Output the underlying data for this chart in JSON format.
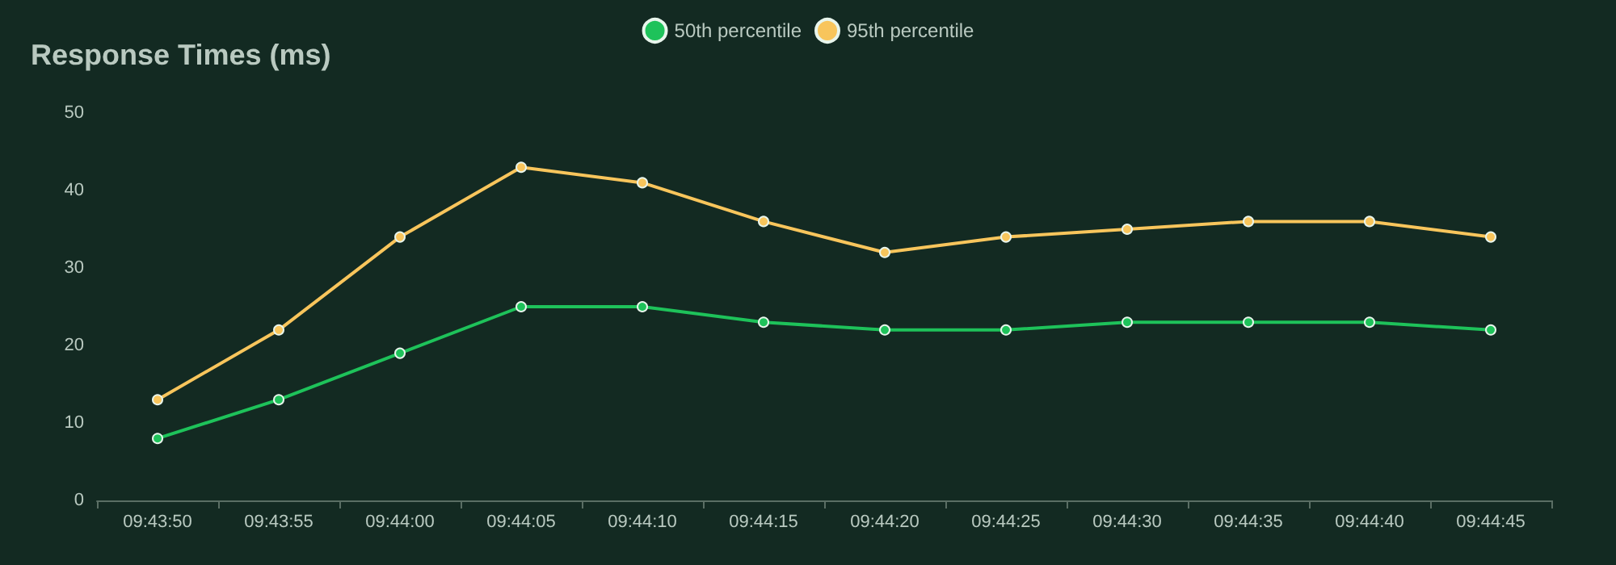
{
  "chart_data": {
    "type": "line",
    "title": "Response Times (ms)",
    "categories": [
      "09:43:50",
      "09:43:55",
      "09:44:00",
      "09:44:05",
      "09:44:10",
      "09:44:15",
      "09:44:20",
      "09:44:25",
      "09:44:30",
      "09:44:35",
      "09:44:40",
      "09:44:45"
    ],
    "series": [
      {
        "name": "50th percentile",
        "color": "#1ec25a",
        "values": [
          8,
          13,
          19,
          25,
          25,
          23,
          22,
          22,
          23,
          23,
          23,
          22
        ]
      },
      {
        "name": "95th percentile",
        "color": "#f8c55c",
        "values": [
          13,
          22,
          34,
          43,
          41,
          36,
          32,
          34,
          35,
          36,
          36,
          34
        ]
      }
    ],
    "ylim": [
      0,
      50
    ],
    "yticks": [
      0,
      10,
      20,
      30,
      40,
      50
    ],
    "grid": false,
    "legend": "top",
    "marker": "circle",
    "line_style": "solid"
  }
}
